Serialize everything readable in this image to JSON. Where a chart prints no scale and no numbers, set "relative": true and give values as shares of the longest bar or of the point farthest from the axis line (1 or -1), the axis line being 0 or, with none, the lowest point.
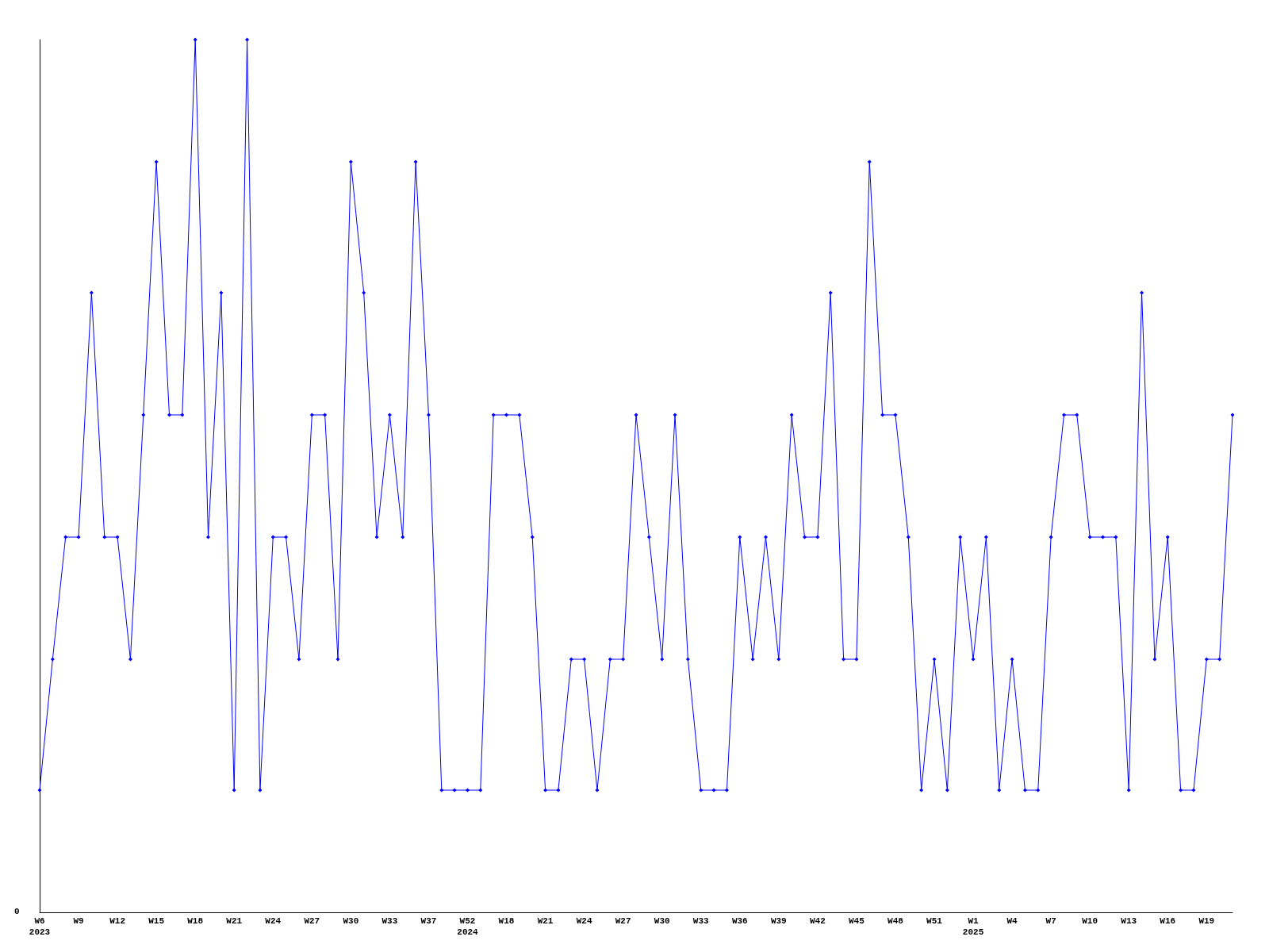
{
  "chart_data": {
    "type": "line",
    "relative": true,
    "categories": [
      "W6\n2023",
      null,
      null,
      "W9",
      null,
      null,
      "W12",
      null,
      null,
      "W15",
      null,
      null,
      "W18",
      null,
      null,
      "W21",
      null,
      null,
      "W24",
      null,
      null,
      "W27",
      null,
      null,
      "W30",
      null,
      null,
      "W33",
      null,
      null,
      "W37",
      null,
      null,
      "W52\n2024",
      null,
      null,
      "W18",
      null,
      null,
      "W21",
      null,
      null,
      "W24",
      null,
      null,
      "W27",
      null,
      null,
      "W30",
      null,
      null,
      "W33",
      null,
      null,
      "W36",
      null,
      null,
      "W39",
      null,
      null,
      "W42",
      null,
      null,
      "W45",
      null,
      null,
      "W48",
      null,
      null,
      "W51",
      null,
      null,
      "W1\n2025",
      null,
      null,
      "W4",
      null,
      null,
      "W7",
      null,
      null,
      "W10",
      null,
      null,
      "W13",
      null,
      null,
      "W16",
      null,
      null,
      "W19",
      null,
      null
    ],
    "series": [
      {
        "color": "#0000ff",
        "values": [
          0.14,
          0.29,
          0.43,
          0.43,
          0.71,
          0.43,
          0.43,
          0.29,
          0.57,
          0.86,
          0.57,
          0.57,
          1,
          0.43,
          0.71,
          0.14,
          1,
          0.14,
          0.43,
          0.43,
          0.29,
          0.57,
          0.57,
          0.29,
          0.86,
          0.71,
          0.43,
          0.57,
          0.43,
          0.86,
          0.57,
          0.14,
          0.14,
          0.14,
          0.14,
          0.57,
          0.57,
          0.57,
          0.43,
          0.14,
          0.14,
          0.29,
          0.29,
          0.14,
          0.29,
          0.29,
          0.57,
          0.43,
          0.29,
          0.57,
          0.29,
          0.14,
          0.14,
          0.14,
          0.43,
          0.29,
          0.43,
          0.29,
          0.57,
          0.43,
          0.43,
          0.71,
          0.29,
          0.29,
          0.86,
          0.57,
          0.57,
          0.43,
          0.14,
          0.29,
          0.14,
          0.43,
          0.29,
          0.43,
          0.14,
          0.29,
          0.14,
          0.14,
          0.43,
          0.57,
          0.57,
          0.43,
          0.43,
          0.43,
          0.14,
          0.71,
          0.29,
          0.43,
          0.14,
          0.14,
          0.29,
          0.29,
          0.57
        ]
      }
    ],
    "marker": "diamond",
    "grid": false,
    "annotations": [
      "0"
    ]
  }
}
